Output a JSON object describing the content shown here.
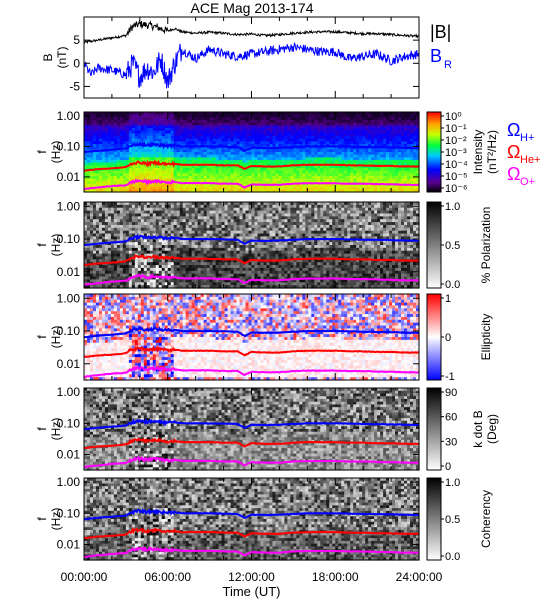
{
  "chart_data": {
    "type": "line",
    "title": "ACE Mag 2013-174",
    "xlabel": "Time (UT)",
    "x_ticks": [
      "00:00:00",
      "06:00:00",
      "12:00:00",
      "18:00:00",
      "24:00:00"
    ],
    "xlim_hours": [
      0,
      24
    ],
    "colors": {
      "B": "#000000",
      "BR": "#0000ff",
      "H": "#0000ff",
      "He": "#ff0000",
      "O": "#ff00ff"
    },
    "panels": [
      {
        "kind": "line",
        "ylabel_top": "B",
        "ylabel_bottom": "(nT)",
        "yticks": [
          "5",
          "0",
          "-5"
        ],
        "ylim": [
          -7.5,
          10
        ],
        "legend": [
          {
            "id": "B",
            "label": "|B|",
            "color": "#000000"
          },
          {
            "id": "BR",
            "label": "B",
            "sub": "R",
            "color": "#0000ff"
          }
        ],
        "series": [
          {
            "id": "B",
            "x": [
              0,
              1,
              2,
              3,
              3.5,
              4,
              5,
              6,
              6.5,
              7,
              8,
              9,
              10,
              11,
              12,
              13,
              14,
              15,
              16,
              17,
              18,
              19,
              20,
              21,
              22,
              23,
              24
            ],
            "y": [
              4.5,
              5,
              5.5,
              6,
              8,
              8.5,
              8,
              7,
              7.5,
              6.8,
              6.5,
              6.7,
              6.5,
              6.2,
              6.3,
              6,
              6.2,
              6.5,
              6.7,
              6.8,
              6.8,
              6.6,
              6.4,
              6.4,
              6.2,
              6,
              5.8
            ]
          },
          {
            "id": "BR",
            "x": [
              0,
              0.5,
              1,
              2,
              3,
              3.5,
              4,
              4.5,
              5,
              5.5,
              6,
              6.5,
              7,
              8,
              9,
              10,
              11,
              12,
              13,
              14,
              15,
              16,
              17,
              18,
              19,
              20,
              21,
              22,
              23,
              24
            ],
            "y": [
              0,
              -2.5,
              -1,
              -1.5,
              -2.5,
              0,
              -3,
              -1,
              -2,
              1,
              -4,
              0,
              3,
              1,
              3,
              2,
              1.5,
              2,
              2.5,
              3,
              3.5,
              3,
              2.5,
              2.5,
              1,
              1.5,
              2,
              0.5,
              1.5,
              2
            ]
          }
        ]
      },
      {
        "kind": "spectrogram",
        "ylabel_top": "f",
        "ylabel_bottom": "(Hz)",
        "yticks": [
          "1.00",
          "0.10",
          "0.01"
        ],
        "colorbar": {
          "label": "Intensity",
          "label2": "(nT²/Hz)",
          "ticks": [
            "10⁰",
            "10⁻¹",
            "10⁻²",
            "10⁻³",
            "10⁻⁴",
            "10⁻⁵",
            "10⁻⁶"
          ],
          "scheme": "rainbow"
        },
        "gyro_legend": [
          {
            "id": "H",
            "symbol": "Ω",
            "sub": "H+",
            "color": "#0000ff"
          },
          {
            "id": "He",
            "symbol": "Ω",
            "sub": "He+",
            "color": "#ff0000"
          },
          {
            "id": "O",
            "symbol": "Ω",
            "sub": "O+",
            "color": "#ff00ff"
          }
        ]
      },
      {
        "kind": "spectrogram",
        "ylabel_top": "f",
        "ylabel_bottom": "(Hz)",
        "yticks": [
          "1.00",
          "0.10",
          "0.01"
        ],
        "colorbar": {
          "label": "% Polarization",
          "ticks": [
            "1.0",
            "0.5",
            "0.0"
          ],
          "scheme": "gray"
        }
      },
      {
        "kind": "spectrogram",
        "ylabel_top": "f",
        "ylabel_bottom": "(Hz)",
        "yticks": [
          "1.00",
          "0.10",
          "0.01"
        ],
        "colorbar": {
          "label": "Ellipticity",
          "ticks": [
            "1",
            "0",
            "-1"
          ],
          "scheme": "bwr"
        }
      },
      {
        "kind": "spectrogram",
        "ylabel_top": "f",
        "ylabel_bottom": "(Hz)",
        "yticks": [
          "1.00",
          "0.10",
          "0.01"
        ],
        "colorbar": {
          "label": "k dot B",
          "label2": "(Deg)",
          "ticks": [
            "90",
            "60",
            "30",
            "0"
          ],
          "scheme": "gray"
        }
      },
      {
        "kind": "spectrogram",
        "ylabel_top": "f",
        "ylabel_bottom": "(Hz)",
        "yticks": [
          "1.00",
          "0.10",
          "0.01"
        ],
        "colorbar": {
          "label": "Coherency",
          "ticks": [
            "1.0",
            "0.5",
            "0.0"
          ],
          "scheme": "gray"
        }
      }
    ],
    "gyrofrequencies_hz": {
      "x": [
        0,
        1,
        2,
        3,
        3.5,
        4,
        4.5,
        5,
        5.5,
        6,
        6.5,
        7,
        8,
        9,
        10,
        11,
        11.5,
        12,
        13,
        14,
        15,
        16,
        17,
        18,
        19,
        20,
        21,
        22,
        23,
        24
      ],
      "H": [
        0.065,
        0.072,
        0.078,
        0.085,
        0.11,
        0.12,
        0.11,
        0.115,
        0.11,
        0.105,
        0.11,
        0.1,
        0.1,
        0.1,
        0.098,
        0.095,
        0.07,
        0.09,
        0.088,
        0.09,
        0.095,
        0.1,
        0.1,
        0.1,
        0.098,
        0.095,
        0.094,
        0.093,
        0.09,
        0.088
      ],
      "He": [
        0.016,
        0.018,
        0.019,
        0.021,
        0.028,
        0.03,
        0.027,
        0.029,
        0.028,
        0.026,
        0.027,
        0.025,
        0.025,
        0.025,
        0.024,
        0.024,
        0.018,
        0.023,
        0.022,
        0.022,
        0.024,
        0.025,
        0.025,
        0.025,
        0.024,
        0.024,
        0.023,
        0.023,
        0.022,
        0.022
      ],
      "O": [
        0.004,
        0.0045,
        0.005,
        0.0053,
        0.007,
        0.0075,
        0.0068,
        0.0072,
        0.007,
        0.0065,
        0.0068,
        0.0063,
        0.0063,
        0.0063,
        0.006,
        0.006,
        0.0045,
        0.0057,
        0.0055,
        0.0055,
        0.006,
        0.0062,
        0.0062,
        0.0062,
        0.006,
        0.006,
        0.0058,
        0.0057,
        0.0055,
        0.0055
      ]
    }
  }
}
